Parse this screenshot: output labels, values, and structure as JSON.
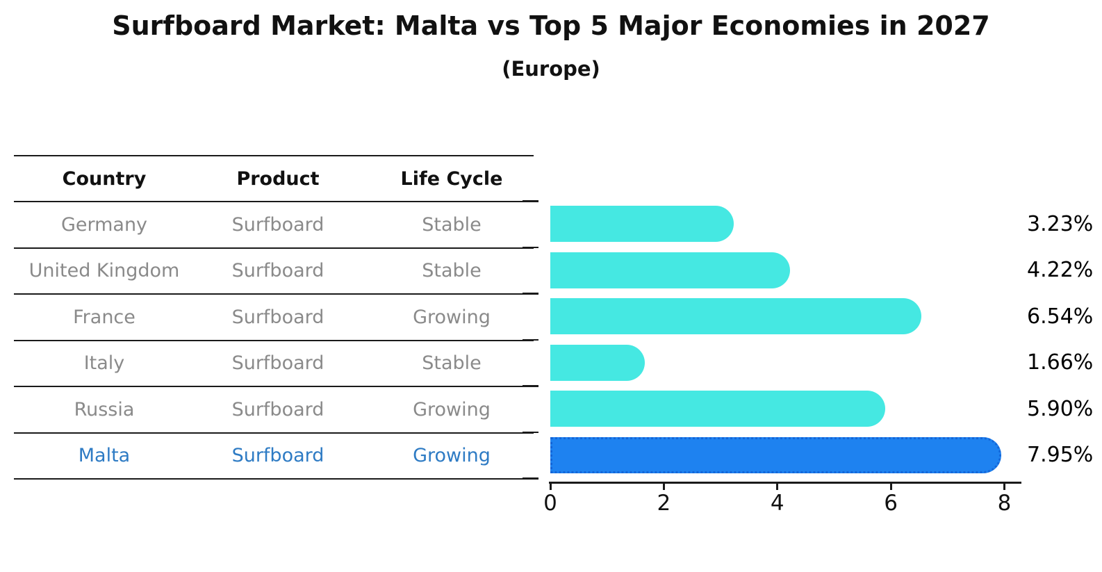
{
  "title": "Surfboard Market: Malta vs Top 5 Major Economies in 2027",
  "subtitle": "(Europe)",
  "table": {
    "headers": [
      "Country",
      "Product",
      "Life Cycle"
    ],
    "rows": [
      {
        "country": "Germany",
        "product": "Surfboard",
        "life_cycle": "Stable",
        "highlight": false
      },
      {
        "country": "United Kingdom",
        "product": "Surfboard",
        "life_cycle": "Stable",
        "highlight": false
      },
      {
        "country": "France",
        "product": "Surfboard",
        "life_cycle": "Growing",
        "highlight": false
      },
      {
        "country": "Italy",
        "product": "Surfboard",
        "life_cycle": "Stable",
        "highlight": false
      },
      {
        "country": "Russia",
        "product": "Surfboard",
        "life_cycle": "Growing",
        "highlight": false
      },
      {
        "country": "Malta",
        "product": "Surfboard",
        "life_cycle": "Growing",
        "highlight": true
      }
    ]
  },
  "chart_data": {
    "type": "bar",
    "orientation": "horizontal",
    "title": "Surfboard Market: Malta vs Top 5 Major Economies in 2027",
    "subtitle": "(Europe)",
    "categories": [
      "Germany",
      "United Kingdom",
      "France",
      "Italy",
      "Russia",
      "Malta"
    ],
    "values": [
      3.23,
      4.22,
      6.54,
      1.66,
      5.9,
      7.95
    ],
    "value_labels": [
      "3.23%",
      "4.22%",
      "6.54%",
      "1.66%",
      "5.90%",
      "7.95%"
    ],
    "x_ticks": [
      "0",
      "2",
      "4",
      "6",
      "8"
    ],
    "xlim": [
      0,
      8.3
    ],
    "xlabel": "",
    "ylabel": "",
    "grid": false,
    "legend": false,
    "bar_color": "#45e8e2",
    "highlight_index": 5,
    "highlight_bar_color": "#1e82f0",
    "highlight_border_color": "#1466d8",
    "highlight_text_color": "#2e7bc4",
    "row_text_color": "#8a8a8a",
    "axis_color": "#1a1a1a"
  }
}
